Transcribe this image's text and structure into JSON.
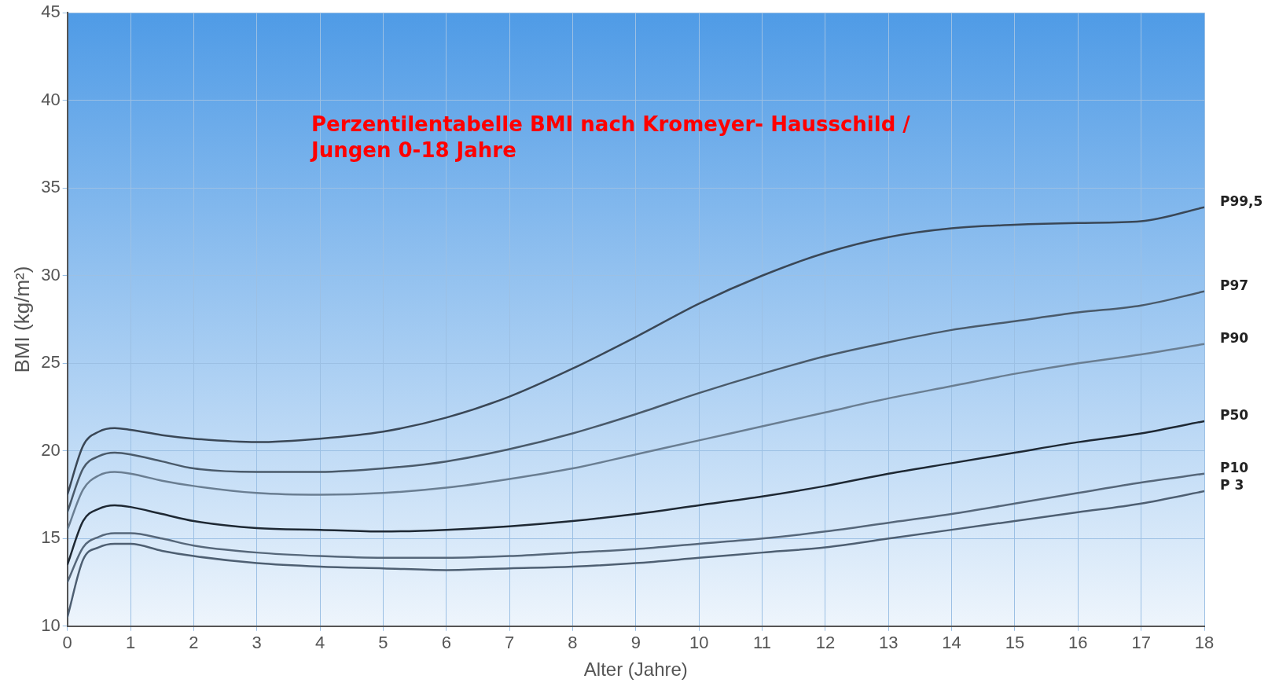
{
  "chart_data": {
    "type": "line",
    "title": "Perzentilentabelle BMI nach Kromeyer- Hausschild / Jungen 0-18 Jahre",
    "xlabel": "Alter (Jahre)",
    "ylabel": "BMI (kg/m²)",
    "x": [
      0,
      0.25,
      0.5,
      0.75,
      1,
      1.5,
      2,
      3,
      4,
      5,
      6,
      7,
      8,
      9,
      10,
      11,
      12,
      13,
      14,
      15,
      16,
      17,
      18
    ],
    "series": [
      {
        "name": "P99,5",
        "color": "#3a4756",
        "values": [
          17.5,
          20.3,
          21.1,
          21.3,
          21.2,
          20.9,
          20.7,
          20.5,
          20.7,
          21.1,
          21.9,
          23.1,
          24.7,
          26.5,
          28.4,
          30.0,
          31.3,
          32.2,
          32.7,
          32.9,
          33.0,
          33.1,
          33.9
        ]
      },
      {
        "name": "P97",
        "color": "#4a5a6a",
        "values": [
          16.5,
          19.0,
          19.7,
          19.9,
          19.8,
          19.4,
          19.0,
          18.8,
          18.8,
          19.0,
          19.4,
          20.1,
          21.0,
          22.1,
          23.3,
          24.4,
          25.4,
          26.2,
          26.9,
          27.4,
          27.9,
          28.3,
          29.1
        ]
      },
      {
        "name": "P90",
        "color": "#6a7e92",
        "values": [
          15.5,
          17.8,
          18.6,
          18.8,
          18.7,
          18.3,
          18.0,
          17.6,
          17.5,
          17.6,
          17.9,
          18.4,
          19.0,
          19.8,
          20.6,
          21.4,
          22.2,
          23.0,
          23.7,
          24.4,
          25.0,
          25.5,
          26.1
        ]
      },
      {
        "name": "P50",
        "color": "#1e2833",
        "values": [
          13.5,
          16.0,
          16.7,
          16.9,
          16.8,
          16.4,
          16.0,
          15.6,
          15.5,
          15.4,
          15.5,
          15.7,
          16.0,
          16.4,
          16.9,
          17.4,
          18.0,
          18.7,
          19.3,
          19.9,
          20.5,
          21.0,
          21.7
        ]
      },
      {
        "name": "P10",
        "color": "#56677a",
        "values": [
          12.5,
          14.5,
          15.1,
          15.3,
          15.3,
          15.0,
          14.6,
          14.2,
          14.0,
          13.9,
          13.9,
          14.0,
          14.2,
          14.4,
          14.7,
          15.0,
          15.4,
          15.9,
          16.4,
          17.0,
          17.6,
          18.2,
          18.7
        ]
      },
      {
        "name": "P 3",
        "color": "#4e5f72",
        "values": [
          10.5,
          13.8,
          14.5,
          14.7,
          14.7,
          14.3,
          14.0,
          13.6,
          13.4,
          13.3,
          13.2,
          13.3,
          13.4,
          13.6,
          13.9,
          14.2,
          14.5,
          15.0,
          15.5,
          16.0,
          16.5,
          17.0,
          17.7
        ]
      }
    ],
    "xlim": [
      0,
      18
    ],
    "xticks": [
      0,
      1,
      2,
      3,
      4,
      5,
      6,
      7,
      8,
      9,
      10,
      11,
      12,
      13,
      14,
      15,
      16,
      17,
      18
    ],
    "ylim": [
      10,
      45
    ],
    "yticks": [
      10,
      15,
      20,
      25,
      30,
      35,
      40,
      45
    ],
    "grid": true,
    "legend": false,
    "marker": "none",
    "line_style": "solid"
  }
}
